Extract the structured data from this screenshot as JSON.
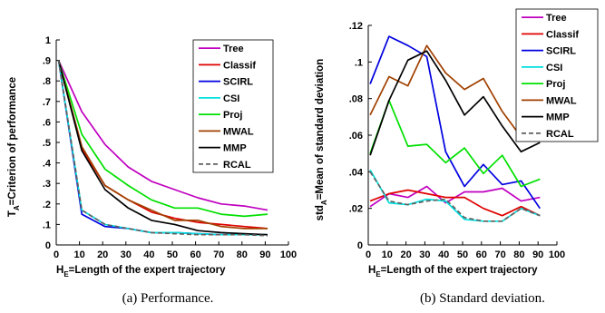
{
  "chart_data": [
    {
      "type": "line",
      "caption": "(a) Performance.",
      "xlabel": "H",
      "xlabel_sub": "E",
      "xlabel_rest": "=Length of the expert trajectory",
      "ylabel": "T",
      "ylabel_sub": "A",
      "ylabel_rest": "=Criterion of performance",
      "xlim": [
        0,
        100
      ],
      "ylim": [
        0,
        1
      ],
      "xticks": [
        0,
        10,
        20,
        30,
        40,
        50,
        60,
        70,
        80,
        90,
        100
      ],
      "yticks": [
        0,
        0.1,
        0.2,
        0.3,
        0.4,
        0.5,
        0.6,
        0.7,
        0.8,
        0.9,
        1
      ],
      "x": [
        1,
        11,
        21,
        31,
        41,
        51,
        61,
        71,
        81,
        91
      ],
      "legend_position": "top-right",
      "series": [
        {
          "name": "Tree",
          "color": "#c000c0",
          "dash": "solid",
          "values": [
            0.9,
            0.65,
            0.49,
            0.38,
            0.31,
            0.27,
            0.23,
            0.2,
            0.19,
            0.17
          ]
        },
        {
          "name": "Classif",
          "color": "#e00000",
          "dash": "solid",
          "values": [
            0.9,
            0.47,
            0.29,
            0.22,
            0.16,
            0.13,
            0.11,
            0.1,
            0.09,
            0.08
          ]
        },
        {
          "name": "SCIRL",
          "color": "#0000e0",
          "dash": "solid",
          "values": [
            0.9,
            0.15,
            0.09,
            0.08,
            0.06,
            0.06,
            0.055,
            0.05,
            0.05,
            0.05
          ]
        },
        {
          "name": "CSI",
          "color": "#00e0e0",
          "dash": "solid",
          "values": [
            0.9,
            0.17,
            0.1,
            0.08,
            0.06,
            0.06,
            0.055,
            0.05,
            0.05,
            0.05
          ]
        },
        {
          "name": "Proj",
          "color": "#00e000",
          "dash": "solid",
          "values": [
            0.9,
            0.54,
            0.37,
            0.29,
            0.22,
            0.18,
            0.18,
            0.15,
            0.14,
            0.15
          ]
        },
        {
          "name": "MWAL",
          "color": "#a04000",
          "dash": "solid",
          "values": [
            0.9,
            0.48,
            0.29,
            0.22,
            0.17,
            0.12,
            0.12,
            0.09,
            0.08,
            0.08
          ]
        },
        {
          "name": "MMP",
          "color": "#000000",
          "dash": "solid",
          "values": [
            0.9,
            0.46,
            0.27,
            0.18,
            0.12,
            0.1,
            0.07,
            0.06,
            0.055,
            0.05
          ]
        },
        {
          "name": "RCAL",
          "color": "#606060",
          "dash": "dashed",
          "values": [
            0.9,
            0.17,
            0.1,
            0.08,
            0.06,
            0.055,
            0.05,
            0.05,
            0.05,
            0.045
          ]
        }
      ]
    },
    {
      "type": "line",
      "caption": "(b) Standard deviation.",
      "xlabel": "H",
      "xlabel_sub": "E",
      "xlabel_rest": "=Length of the expert trajectory",
      "ylabel": "std",
      "ylabel_sub": "A",
      "ylabel_rest": "=Mean of standard deviation",
      "xlim": [
        0,
        100
      ],
      "ylim": [
        0,
        0.12
      ],
      "xticks": [
        0,
        10,
        20,
        30,
        40,
        50,
        60,
        70,
        80,
        90,
        100
      ],
      "yticks": [
        0,
        0.02,
        0.04,
        0.06,
        0.08,
        0.1,
        0.12
      ],
      "x": [
        1,
        11,
        21,
        31,
        41,
        51,
        61,
        71,
        81,
        91
      ],
      "legend_position": "top-right",
      "series": [
        {
          "name": "Tree",
          "color": "#c000c0",
          "dash": "solid",
          "values": [
            0.021,
            0.028,
            0.026,
            0.032,
            0.023,
            0.029,
            0.029,
            0.031,
            0.024,
            0.026
          ]
        },
        {
          "name": "Classif",
          "color": "#e00000",
          "dash": "solid",
          "values": [
            0.024,
            0.028,
            0.03,
            0.028,
            0.026,
            0.026,
            0.02,
            0.016,
            0.021,
            0.016
          ]
        },
        {
          "name": "SCIRL",
          "color": "#0000e0",
          "dash": "solid",
          "values": [
            0.088,
            0.114,
            0.109,
            0.103,
            0.051,
            0.032,
            0.044,
            0.033,
            0.035,
            0.02
          ]
        },
        {
          "name": "CSI",
          "color": "#00e0e0",
          "dash": "solid",
          "values": [
            0.041,
            0.023,
            0.022,
            0.025,
            0.024,
            0.014,
            0.013,
            0.013,
            0.02,
            0.016
          ]
        },
        {
          "name": "Proj",
          "color": "#00e000",
          "dash": "solid",
          "values": [
            0.05,
            0.079,
            0.054,
            0.055,
            0.045,
            0.053,
            0.039,
            0.049,
            0.032,
            0.036
          ]
        },
        {
          "name": "MWAL",
          "color": "#a04000",
          "dash": "solid",
          "values": [
            0.071,
            0.092,
            0.087,
            0.109,
            0.094,
            0.085,
            0.091,
            0.073,
            0.059,
            0.062
          ]
        },
        {
          "name": "MMP",
          "color": "#000000",
          "dash": "solid",
          "values": [
            0.049,
            0.079,
            0.101,
            0.106,
            0.09,
            0.071,
            0.081,
            0.065,
            0.051,
            0.056
          ]
        },
        {
          "name": "RCAL",
          "color": "#606060",
          "dash": "dashed",
          "values": [
            0.04,
            0.024,
            0.022,
            0.024,
            0.025,
            0.015,
            0.013,
            0.013,
            0.02,
            0.016
          ]
        }
      ]
    }
  ]
}
